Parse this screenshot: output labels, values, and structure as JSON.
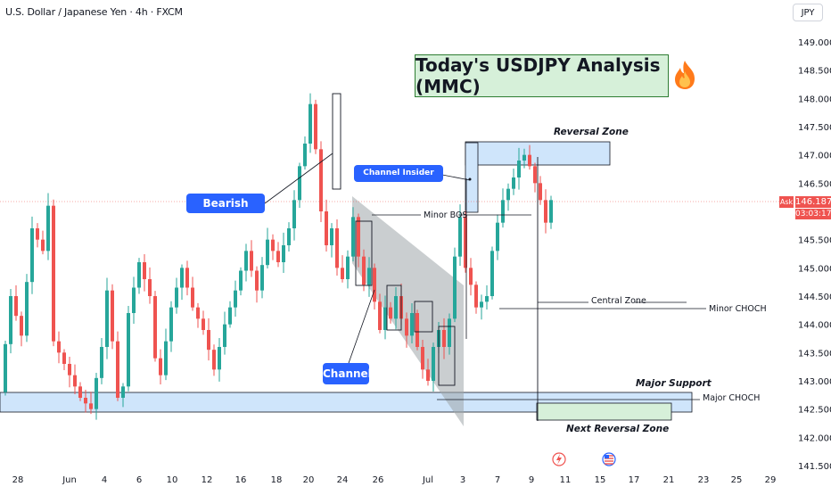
{
  "header": {
    "symbol": "U.S. Dollar / Japanese Yen · 4h · FXCM",
    "currency": "JPY"
  },
  "headline": "Today's USDJPY Analysis (MMC)",
  "headline_icon": "fire-icon",
  "price_tags": {
    "ask_label": "Ask",
    "ask_price": "146.187",
    "countdown": "03:03:17"
  },
  "colors": {
    "bull": "#26a69a",
    "bear": "#ef5350",
    "zone_blue": "#cfe5fb",
    "zone_green": "#d6f0d9",
    "callout_blue": "#2962ff",
    "channel": "#9ea6aa"
  },
  "callouts": {
    "bearish_pattern": "Bearish Pattern",
    "channel": "Channel"
  },
  "annotations": {
    "reversal_zone": "Reversal Zone",
    "channel_insider_demand": "Channel Insider Demand",
    "minor_bos": "Minor BOS",
    "central_zone": "Central Zone",
    "minor_choch": "Minor CHOCH",
    "major_support": "Major Support",
    "major_choch": "Major CHOCH",
    "next_reversal_zone": "Next Reversal Zone"
  },
  "chart_data": {
    "type": "candlestick",
    "y_axis": {
      "range": [
        141.5,
        149.2
      ],
      "ticks": [
        "149.000",
        "148.500",
        "148.000",
        "147.500",
        "147.000",
        "146.500",
        "146.000",
        "145.500",
        "145.000",
        "144.500",
        "144.000",
        "143.500",
        "143.000",
        "142.500",
        "142.000",
        "141.500"
      ]
    },
    "x_axis": {
      "ticks": [
        "28",
        "Jun",
        "4",
        "6",
        "10",
        "12",
        "16",
        "18",
        "20",
        "24",
        "26",
        "Jul",
        "3",
        "7",
        "9",
        "11",
        "15",
        "17",
        "21",
        "23",
        "25",
        "29"
      ]
    },
    "last_price": 146.187,
    "ohlc_path": [
      [
        0,
        142.8
      ],
      [
        2,
        144.5
      ],
      [
        4,
        143.8
      ],
      [
        6,
        145.7
      ],
      [
        8,
        145.3
      ],
      [
        9,
        146.1
      ],
      [
        10,
        143.7
      ],
      [
        11,
        143.5
      ],
      [
        13,
        143.1
      ],
      [
        15,
        142.7
      ],
      [
        17,
        142.5
      ],
      [
        19,
        143.6
      ],
      [
        20,
        144.6
      ],
      [
        21,
        143.7
      ],
      [
        22,
        142.7
      ],
      [
        23,
        142.9
      ],
      [
        24,
        144.2
      ],
      [
        26,
        145.1
      ],
      [
        28,
        144.5
      ],
      [
        29,
        143.4
      ],
      [
        30,
        143.1
      ],
      [
        32,
        144.3
      ],
      [
        34,
        145.0
      ],
      [
        36,
        144.3
      ],
      [
        38,
        143.9
      ],
      [
        40,
        143.2
      ],
      [
        42,
        144.0
      ],
      [
        44,
        144.6
      ],
      [
        46,
        145.3
      ],
      [
        48,
        144.6
      ],
      [
        50,
        145.5
      ],
      [
        52,
        145.1
      ],
      [
        54,
        145.7
      ],
      [
        55,
        146.2
      ],
      [
        56,
        146.8
      ],
      [
        57,
        147.2
      ],
      [
        58,
        147.9
      ],
      [
        59,
        147.1
      ],
      [
        60,
        146.0
      ],
      [
        61,
        145.4
      ],
      [
        62,
        145.7
      ],
      [
        63,
        145.0
      ],
      [
        64,
        144.8
      ],
      [
        65,
        145.2
      ],
      [
        66,
        145.9
      ],
      [
        67,
        145.2
      ],
      [
        68,
        144.7
      ],
      [
        69,
        145.0
      ],
      [
        70,
        144.4
      ],
      [
        71,
        143.9
      ],
      [
        72,
        144.3
      ],
      [
        73,
        144.1
      ],
      [
        74,
        144.5
      ],
      [
        75,
        144.1
      ],
      [
        76,
        143.8
      ],
      [
        77,
        144.2
      ],
      [
        78,
        143.6
      ],
      [
        79,
        143.2
      ],
      [
        80,
        143.0
      ],
      [
        81,
        143.6
      ],
      [
        82,
        143.9
      ],
      [
        83,
        143.6
      ],
      [
        84,
        144.1
      ],
      [
        85,
        145.2
      ],
      [
        86,
        145.9
      ],
      [
        87,
        145.0
      ],
      [
        88,
        144.7
      ],
      [
        89,
        144.3
      ],
      [
        90,
        144.4
      ],
      [
        91,
        144.5
      ],
      [
        92,
        145.3
      ],
      [
        93,
        145.8
      ],
      [
        94,
        146.2
      ],
      [
        95,
        146.4
      ],
      [
        96,
        146.6
      ],
      [
        97,
        146.9
      ],
      [
        98,
        147.0
      ],
      [
        99,
        146.8
      ],
      [
        100,
        146.5
      ],
      [
        101,
        146.2
      ],
      [
        102,
        145.8
      ],
      [
        103,
        146.2
      ]
    ]
  }
}
